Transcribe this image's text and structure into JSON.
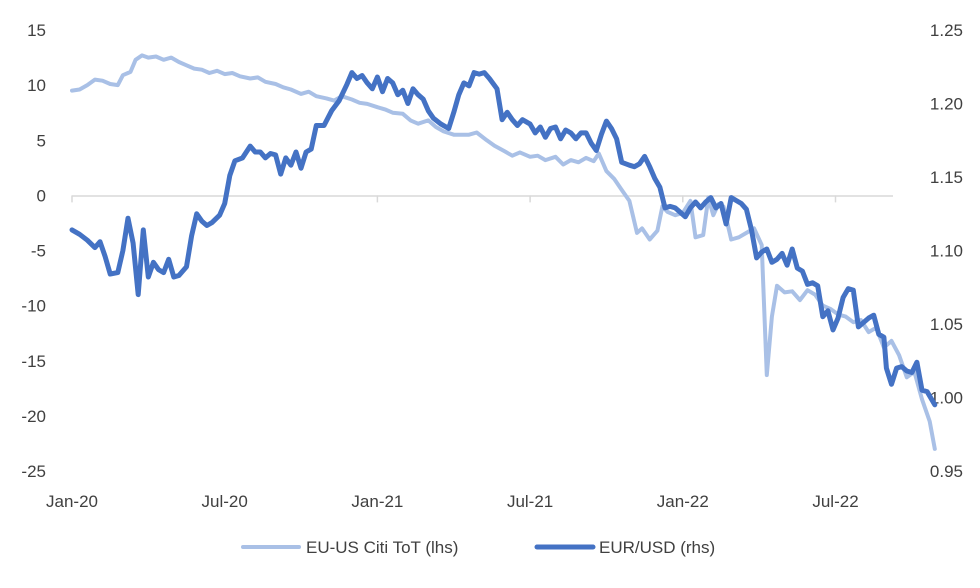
{
  "chart_data": {
    "type": "line",
    "title": "",
    "legend_position": "bottom",
    "grid": false,
    "x_axis": {
      "range": [
        "2020-01",
        "2022-09"
      ],
      "tick_labels": [
        "Jan-20",
        "Jul-20",
        "Jan-21",
        "Jul-21",
        "Jan-22",
        "Jul-22"
      ],
      "tick_values": [
        0,
        6,
        12,
        18,
        24,
        30
      ]
    },
    "y_left": {
      "range": [
        -25,
        15
      ],
      "ticks": [
        15,
        10,
        5,
        0,
        -5,
        -10,
        -15,
        -20,
        -25
      ],
      "tick_labels": [
        "15",
        "10",
        "5",
        "0",
        "-5",
        "-10",
        "-15",
        "-20",
        "-25"
      ]
    },
    "y_right": {
      "range": [
        0.95,
        1.25
      ],
      "ticks": [
        1.25,
        1.2,
        1.15,
        1.1,
        1.05,
        1.0,
        0.95
      ],
      "tick_labels": [
        "1.25",
        "1.20",
        "1.15",
        "1.10",
        "1.05",
        "1.00",
        "0.95"
      ]
    },
    "series": [
      {
        "name": "EU-US Citi ToT (lhs)",
        "axis": "left",
        "color": "#a9c0e6",
        "line_width": 4,
        "points": [
          [
            0.0,
            9.5
          ],
          [
            0.3,
            9.6
          ],
          [
            0.6,
            10.0
          ],
          [
            0.9,
            10.5
          ],
          [
            1.2,
            10.4
          ],
          [
            1.5,
            10.1
          ],
          [
            1.8,
            10.0
          ],
          [
            2.0,
            10.9
          ],
          [
            2.3,
            11.2
          ],
          [
            2.5,
            12.3
          ],
          [
            2.75,
            12.7
          ],
          [
            3.0,
            12.5
          ],
          [
            3.3,
            12.6
          ],
          [
            3.6,
            12.3
          ],
          [
            3.9,
            12.5
          ],
          [
            4.2,
            12.1
          ],
          [
            4.5,
            11.8
          ],
          [
            4.8,
            11.5
          ],
          [
            5.1,
            11.4
          ],
          [
            5.4,
            11.1
          ],
          [
            5.7,
            11.3
          ],
          [
            6.0,
            11.0
          ],
          [
            6.3,
            11.1
          ],
          [
            6.6,
            10.8
          ],
          [
            7.0,
            10.6
          ],
          [
            7.3,
            10.7
          ],
          [
            7.6,
            10.3
          ],
          [
            8.0,
            10.1
          ],
          [
            8.3,
            9.8
          ],
          [
            8.6,
            9.6
          ],
          [
            9.0,
            9.2
          ],
          [
            9.3,
            9.4
          ],
          [
            9.6,
            9.0
          ],
          [
            10.0,
            8.8
          ],
          [
            10.3,
            8.6
          ],
          [
            10.6,
            9.0
          ],
          [
            11.0,
            8.7
          ],
          [
            11.3,
            8.4
          ],
          [
            11.6,
            8.3
          ],
          [
            12.0,
            8.0
          ],
          [
            12.3,
            7.8
          ],
          [
            12.6,
            7.5
          ],
          [
            13.0,
            7.4
          ],
          [
            13.3,
            6.8
          ],
          [
            13.6,
            6.5
          ],
          [
            14.0,
            6.8
          ],
          [
            14.3,
            6.2
          ],
          [
            14.6,
            5.8
          ],
          [
            15.0,
            5.5
          ],
          [
            15.3,
            5.5
          ],
          [
            15.6,
            5.5
          ],
          [
            15.9,
            5.7
          ],
          [
            16.3,
            5.0
          ],
          [
            16.6,
            4.5
          ],
          [
            17.0,
            4.0
          ],
          [
            17.3,
            3.6
          ],
          [
            17.6,
            3.9
          ],
          [
            18.0,
            3.5
          ],
          [
            18.3,
            3.6
          ],
          [
            18.6,
            3.2
          ],
          [
            19.0,
            3.5
          ],
          [
            19.3,
            2.8
          ],
          [
            19.6,
            3.2
          ],
          [
            19.9,
            3.0
          ],
          [
            20.2,
            3.4
          ],
          [
            20.5,
            3.1
          ],
          [
            20.7,
            3.8
          ],
          [
            21.0,
            2.2
          ],
          [
            21.3,
            1.5
          ],
          [
            21.6,
            0.5
          ],
          [
            21.9,
            -0.5
          ],
          [
            22.2,
            -3.4
          ],
          [
            22.4,
            -3.0
          ],
          [
            22.7,
            -4.0
          ],
          [
            23.0,
            -3.2
          ],
          [
            23.2,
            -1.0
          ],
          [
            23.4,
            -1.5
          ],
          [
            23.7,
            -1.8
          ],
          [
            24.0,
            -1.6
          ],
          [
            24.3,
            -0.5
          ],
          [
            24.5,
            -3.8
          ],
          [
            24.8,
            -3.6
          ],
          [
            25.0,
            -0.2
          ],
          [
            25.2,
            -1.8
          ],
          [
            25.4,
            -0.8
          ],
          [
            25.6,
            -1.0
          ],
          [
            25.9,
            -4.0
          ],
          [
            26.2,
            -3.8
          ],
          [
            26.5,
            -3.4
          ],
          [
            26.8,
            -3.0
          ],
          [
            27.1,
            -4.5
          ],
          [
            27.3,
            -16.3
          ],
          [
            27.5,
            -11.0
          ],
          [
            27.7,
            -8.2
          ],
          [
            28.0,
            -8.8
          ],
          [
            28.3,
            -8.7
          ],
          [
            28.6,
            -9.5
          ],
          [
            28.9,
            -8.6
          ],
          [
            29.2,
            -9.0
          ],
          [
            29.5,
            -10.0
          ],
          [
            29.8,
            -10.3
          ],
          [
            30.1,
            -10.8
          ],
          [
            30.4,
            -11.0
          ],
          [
            30.7,
            -11.5
          ],
          [
            31.0,
            -11.3
          ],
          [
            31.3,
            -12.4
          ],
          [
            31.6,
            -12.0
          ],
          [
            31.9,
            -13.8
          ],
          [
            32.2,
            -13.2
          ],
          [
            32.5,
            -14.5
          ],
          [
            32.8,
            -16.5
          ],
          [
            33.1,
            -16.0
          ],
          [
            33.4,
            -18.5
          ],
          [
            33.7,
            -20.5
          ],
          [
            33.9,
            -23.0
          ]
        ]
      },
      {
        "name": "EUR/USD (rhs)",
        "axis": "right",
        "color": "#4472c4",
        "line_width": 5,
        "points": [
          [
            0.0,
            1.114
          ],
          [
            0.3,
            1.111
          ],
          [
            0.6,
            1.107
          ],
          [
            0.9,
            1.102
          ],
          [
            1.1,
            1.106
          ],
          [
            1.3,
            1.096
          ],
          [
            1.5,
            1.084
          ],
          [
            1.8,
            1.085
          ],
          [
            2.0,
            1.1
          ],
          [
            2.2,
            1.122
          ],
          [
            2.4,
            1.105
          ],
          [
            2.6,
            1.07
          ],
          [
            2.8,
            1.114
          ],
          [
            3.0,
            1.082
          ],
          [
            3.2,
            1.092
          ],
          [
            3.4,
            1.087
          ],
          [
            3.6,
            1.085
          ],
          [
            3.8,
            1.094
          ],
          [
            4.0,
            1.082
          ],
          [
            4.2,
            1.083
          ],
          [
            4.5,
            1.089
          ],
          [
            4.7,
            1.11
          ],
          [
            4.9,
            1.125
          ],
          [
            5.1,
            1.12
          ],
          [
            5.3,
            1.117
          ],
          [
            5.5,
            1.119
          ],
          [
            5.8,
            1.124
          ],
          [
            6.0,
            1.132
          ],
          [
            6.2,
            1.151
          ],
          [
            6.4,
            1.161
          ],
          [
            6.7,
            1.163
          ],
          [
            7.0,
            1.171
          ],
          [
            7.2,
            1.167
          ],
          [
            7.4,
            1.167
          ],
          [
            7.6,
            1.163
          ],
          [
            7.8,
            1.166
          ],
          [
            8.0,
            1.165
          ],
          [
            8.2,
            1.152
          ],
          [
            8.4,
            1.163
          ],
          [
            8.6,
            1.158
          ],
          [
            8.8,
            1.167
          ],
          [
            9.0,
            1.156
          ],
          [
            9.2,
            1.167
          ],
          [
            9.4,
            1.169
          ],
          [
            9.6,
            1.185
          ],
          [
            9.9,
            1.185
          ],
          [
            10.2,
            1.195
          ],
          [
            10.5,
            1.202
          ],
          [
            10.8,
            1.213
          ],
          [
            11.0,
            1.221
          ],
          [
            11.2,
            1.217
          ],
          [
            11.4,
            1.219
          ],
          [
            11.6,
            1.214
          ],
          [
            11.8,
            1.21
          ],
          [
            12.0,
            1.218
          ],
          [
            12.2,
            1.208
          ],
          [
            12.4,
            1.217
          ],
          [
            12.6,
            1.214
          ],
          [
            12.8,
            1.206
          ],
          [
            13.0,
            1.209
          ],
          [
            13.2,
            1.2
          ],
          [
            13.4,
            1.21
          ],
          [
            13.6,
            1.206
          ],
          [
            13.8,
            1.203
          ],
          [
            14.0,
            1.195
          ],
          [
            14.2,
            1.19
          ],
          [
            14.5,
            1.186
          ],
          [
            14.8,
            1.183
          ],
          [
            15.0,
            1.194
          ],
          [
            15.2,
            1.206
          ],
          [
            15.4,
            1.214
          ],
          [
            15.6,
            1.212
          ],
          [
            15.8,
            1.221
          ],
          [
            16.0,
            1.22
          ],
          [
            16.2,
            1.221
          ],
          [
            16.4,
            1.217
          ],
          [
            16.7,
            1.21
          ],
          [
            16.9,
            1.189
          ],
          [
            17.1,
            1.194
          ],
          [
            17.3,
            1.189
          ],
          [
            17.5,
            1.185
          ],
          [
            17.7,
            1.189
          ],
          [
            18.0,
            1.186
          ],
          [
            18.2,
            1.18
          ],
          [
            18.4,
            1.184
          ],
          [
            18.6,
            1.177
          ],
          [
            18.8,
            1.183
          ],
          [
            19.0,
            1.184
          ],
          [
            19.2,
            1.176
          ],
          [
            19.4,
            1.182
          ],
          [
            19.6,
            1.18
          ],
          [
            19.8,
            1.176
          ],
          [
            20.0,
            1.18
          ],
          [
            20.2,
            1.18
          ],
          [
            20.4,
            1.173
          ],
          [
            20.6,
            1.168
          ],
          [
            20.8,
            1.179
          ],
          [
            21.0,
            1.188
          ],
          [
            21.2,
            1.183
          ],
          [
            21.4,
            1.176
          ],
          [
            21.6,
            1.16
          ],
          [
            21.9,
            1.158
          ],
          [
            22.1,
            1.157
          ],
          [
            22.3,
            1.159
          ],
          [
            22.5,
            1.164
          ],
          [
            22.7,
            1.157
          ],
          [
            22.9,
            1.149
          ],
          [
            23.1,
            1.143
          ],
          [
            23.3,
            1.129
          ],
          [
            23.5,
            1.13
          ],
          [
            23.7,
            1.129
          ],
          [
            23.9,
            1.126
          ],
          [
            24.1,
            1.123
          ],
          [
            24.3,
            1.129
          ],
          [
            24.5,
            1.133
          ],
          [
            24.7,
            1.129
          ],
          [
            24.9,
            1.133
          ],
          [
            25.1,
            1.136
          ],
          [
            25.3,
            1.129
          ],
          [
            25.5,
            1.132
          ],
          [
            25.7,
            1.118
          ],
          [
            25.9,
            1.136
          ],
          [
            26.1,
            1.134
          ],
          [
            26.3,
            1.132
          ],
          [
            26.5,
            1.128
          ],
          [
            26.7,
            1.114
          ],
          [
            26.9,
            1.095
          ],
          [
            27.1,
            1.099
          ],
          [
            27.3,
            1.101
          ],
          [
            27.5,
            1.092
          ],
          [
            27.7,
            1.094
          ],
          [
            27.9,
            1.098
          ],
          [
            28.1,
            1.09
          ],
          [
            28.3,
            1.101
          ],
          [
            28.5,
            1.088
          ],
          [
            28.7,
            1.086
          ],
          [
            28.9,
            1.077
          ],
          [
            29.1,
            1.078
          ],
          [
            29.3,
            1.076
          ],
          [
            29.5,
            1.055
          ],
          [
            29.7,
            1.059
          ],
          [
            29.9,
            1.046
          ],
          [
            30.1,
            1.054
          ],
          [
            30.3,
            1.068
          ],
          [
            30.5,
            1.074
          ],
          [
            30.7,
            1.073
          ],
          [
            30.9,
            1.048
          ],
          [
            31.1,
            1.051
          ],
          [
            31.3,
            1.054
          ],
          [
            31.5,
            1.056
          ],
          [
            31.7,
            1.043
          ],
          [
            31.9,
            1.041
          ],
          [
            32.0,
            1.02
          ],
          [
            32.2,
            1.009
          ],
          [
            32.4,
            1.02
          ],
          [
            32.6,
            1.021
          ],
          [
            32.8,
            1.018
          ],
          [
            33.0,
            1.017
          ],
          [
            33.2,
            1.024
          ],
          [
            33.4,
            1.005
          ],
          [
            33.6,
            1.004
          ],
          [
            33.9,
            0.995
          ]
        ]
      }
    ]
  }
}
